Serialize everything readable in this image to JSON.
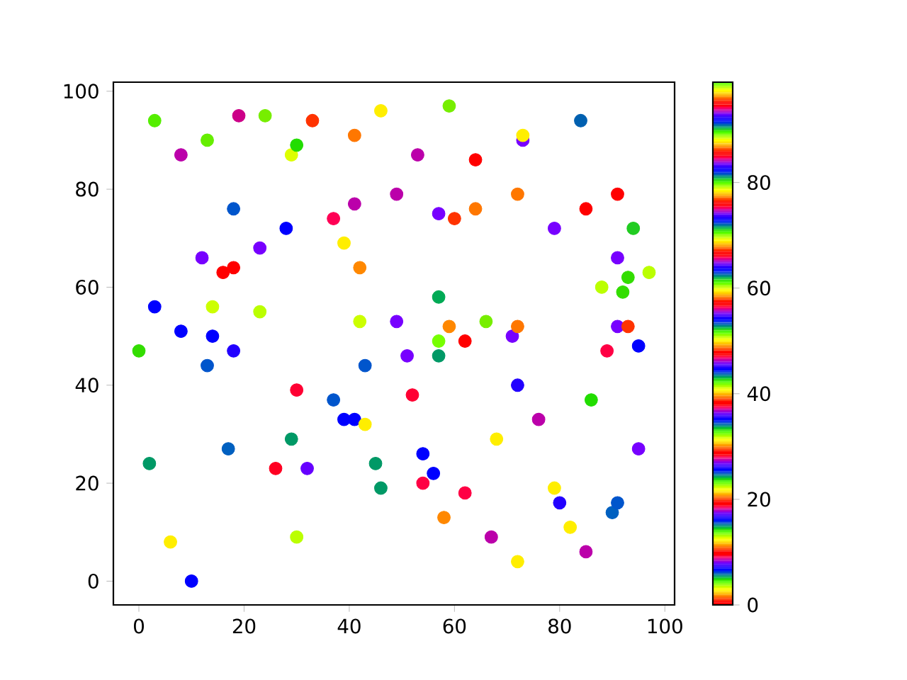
{
  "chart_data": {
    "type": "scatter",
    "marker": "circle",
    "x": [
      0,
      2,
      3,
      3,
      6,
      8,
      8,
      10,
      13,
      12,
      13,
      14,
      14,
      16,
      18,
      18,
      18,
      17,
      19,
      23,
      23,
      24,
      26,
      28,
      29,
      30,
      29,
      30,
      30,
      32,
      33,
      37,
      37,
      39,
      39,
      41,
      41,
      41,
      42,
      42,
      43,
      43,
      45,
      46,
      46,
      49,
      49,
      51,
      52,
      53,
      54,
      54,
      56,
      57,
      57,
      57,
      57,
      58,
      59,
      59,
      60,
      62,
      62,
      64,
      64,
      66,
      67,
      68,
      71,
      72,
      72,
      72,
      72,
      73,
      73,
      76,
      79,
      79,
      80,
      82,
      84,
      85,
      85,
      86,
      88,
      89,
      90,
      91,
      91,
      91,
      91,
      92,
      93,
      93,
      94,
      95,
      95,
      97
    ],
    "values": [
      47,
      24,
      94,
      56,
      8,
      87,
      51,
      0,
      90,
      66,
      44,
      56,
      50,
      63,
      64,
      76,
      47,
      27,
      95,
      68,
      55,
      95,
      23,
      72,
      87,
      89,
      29,
      39,
      9,
      23,
      94,
      74,
      37,
      69,
      33,
      33,
      91,
      77,
      64,
      53,
      44,
      32,
      24,
      19,
      96,
      79,
      53,
      46,
      38,
      87,
      26,
      20,
      22,
      75,
      58,
      49,
      46,
      13,
      97,
      52,
      74,
      49,
      18,
      86,
      76,
      53,
      9,
      29,
      50,
      40,
      79,
      52,
      4,
      90,
      91,
      33,
      72,
      19,
      16,
      11,
      94,
      76,
      6,
      37,
      60,
      47,
      14,
      16,
      79,
      66,
      52,
      59,
      62,
      52,
      72,
      48,
      27,
      63
    ],
    "colors": [
      "#33dd00",
      "#009966",
      "#55ee00",
      "#0000ff",
      "#ffee00",
      "#bb00aa",
      "#0000ff",
      "#0000ff",
      "#66ee00",
      "#7700ff",
      "#0055cc",
      "#ccff00",
      "#0000ff",
      "#ff0000",
      "#ff0000",
      "#0055cc",
      "#2200ff",
      "#0060c0",
      "#cc0088",
      "#7700ff",
      "#bbff00",
      "#77ee00",
      "#ff0022",
      "#0000ff",
      "#ddff00",
      "#22dd00",
      "#009966",
      "#ff0033",
      "#bbff00",
      "#6600ff",
      "#ff3300",
      "#ff0055",
      "#0055cc",
      "#ffee00",
      "#0000ff",
      "#0000ff",
      "#ff7700",
      "#bb00aa",
      "#ff8800",
      "#ccff00",
      "#0055cc",
      "#ffee00",
      "#009966",
      "#009966",
      "#ffee00",
      "#bb00aa",
      "#7700ff",
      "#7700ff",
      "#ff0033",
      "#bb00aa",
      "#0000ff",
      "#ff0044",
      "#0000ff",
      "#7700ff",
      "#00aa55",
      "#77ff00",
      "#009966",
      "#ff8800",
      "#77ee00",
      "#ff8800",
      "#ff3300",
      "#ff0000",
      "#ff0044",
      "#ff0000",
      "#ff7700",
      "#77ee00",
      "#bb00aa",
      "#ffee00",
      "#7700ff",
      "#2200ff",
      "#ff7700",
      "#ff7700",
      "#ffee00",
      "#7700ff",
      "#ffee00",
      "#bb00aa",
      "#7700ff",
      "#ffee00",
      "#2200ff",
      "#ffee00",
      "#0060b0",
      "#ff0000",
      "#bb00aa",
      "#22dd00",
      "#bbff00",
      "#ff0044",
      "#0060c0",
      "#0055cc",
      "#ff0000",
      "#7700ff",
      "#7700ff",
      "#33dd00",
      "#33dd00",
      "#ff3300",
      "#22cc22",
      "#0000ff",
      "#7700ff",
      "#bbff00"
    ],
    "xlim": [
      -4.85,
      101.85
    ],
    "ylim": [
      -4.85,
      101.85
    ],
    "xticks": [
      0,
      20,
      40,
      60,
      80,
      100
    ],
    "yticks": [
      0,
      20,
      40,
      60,
      80,
      100
    ],
    "clim": [
      0,
      99
    ],
    "cticks": [
      0,
      20,
      40,
      60,
      80
    ]
  }
}
